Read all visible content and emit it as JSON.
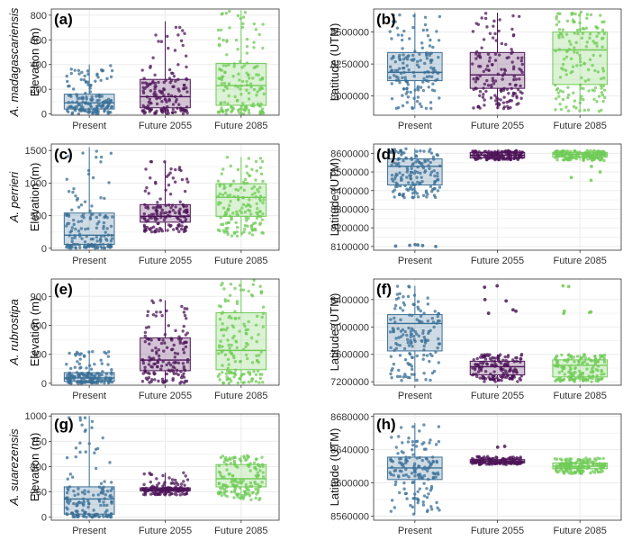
{
  "colors": {
    "Present": "#3a6f96",
    "Future 2055": "#4e1458",
    "Future 2085": "#6fcb55"
  },
  "chart_data": [
    {
      "type": "box",
      "label": "(a)",
      "species": "A. madagascariensis",
      "ylabel": "Elevation (m)",
      "categories": [
        "Present",
        "Future 2055",
        "Future 2085"
      ],
      "ylim": [
        -10,
        850
      ],
      "yticks": [
        0,
        200,
        400,
        600,
        800
      ],
      "yticklabels": [
        "0",
        "200",
        "400",
        "600",
        "800"
      ],
      "grid": true,
      "series": [
        {
          "category": "Present",
          "q1": 40,
          "median": 90,
          "q3": 160,
          "whisker_low": 0,
          "whisker_high": 400,
          "points_range": [
            0,
            400
          ]
        },
        {
          "category": "Future 2055",
          "q1": 50,
          "median": 140,
          "q3": 280,
          "whisker_low": 0,
          "whisker_high": 750,
          "points_range": [
            0,
            750
          ]
        },
        {
          "category": "Future 2085",
          "q1": 70,
          "median": 230,
          "q3": 410,
          "whisker_low": 0,
          "whisker_high": 840,
          "points_range": [
            0,
            840
          ]
        }
      ]
    },
    {
      "type": "box",
      "label": "(b)",
      "species": "",
      "ylabel": "Latitude (UTM)",
      "categories": [
        "Present",
        "Future 2055",
        "Future 2085"
      ],
      "ylim": [
        7850000,
        8680000
      ],
      "yticks": [
        8000000,
        8250000,
        8500000
      ],
      "yticklabels": [
        "8000000",
        "8250000",
        "8500000"
      ],
      "grid": true,
      "series": [
        {
          "category": "Present",
          "q1": 8120000,
          "median": 8185000,
          "q3": 8340000,
          "whisker_low": 7900000,
          "whisker_high": 8650000,
          "points_range": [
            7900000,
            8650000
          ]
        },
        {
          "category": "Future 2055",
          "q1": 8060000,
          "median": 8165000,
          "q3": 8340000,
          "whisker_low": 7900000,
          "whisker_high": 8650000,
          "points_range": [
            7900000,
            8650000
          ]
        },
        {
          "category": "Future 2085",
          "q1": 8090000,
          "median": 8360000,
          "q3": 8500000,
          "whisker_low": 7880000,
          "whisker_high": 8660000,
          "points_range": [
            7880000,
            8660000
          ]
        }
      ]
    },
    {
      "type": "box",
      "label": "(c)",
      "species": "A. perrieri",
      "ylabel": "Elevation (m)",
      "categories": [
        "Present",
        "Future 2055",
        "Future 2085"
      ],
      "ylim": [
        -30,
        1600
      ],
      "yticks": [
        0,
        500,
        1000,
        1500
      ],
      "yticklabels": [
        "0",
        "500",
        "1000",
        "1500"
      ],
      "grid": true,
      "series": [
        {
          "category": "Present",
          "q1": 60,
          "median": 200,
          "q3": 540,
          "whisker_low": 0,
          "whisker_high": 1550,
          "points_range": [
            0,
            1550
          ]
        },
        {
          "category": "Future 2055",
          "q1": 400,
          "median": 490,
          "q3": 670,
          "whisker_low": 250,
          "whisker_high": 1330,
          "points_range": [
            250,
            1330
          ]
        },
        {
          "category": "Future 2085",
          "q1": 490,
          "median": 780,
          "q3": 990,
          "whisker_low": 180,
          "whisker_high": 1400,
          "points_range": [
            180,
            1400
          ]
        }
      ]
    },
    {
      "type": "box",
      "label": "(d)",
      "species": "",
      "ylabel": "Latitude (UTM)",
      "categories": [
        "Present",
        "Future 2055",
        "Future 2085"
      ],
      "ylim": [
        8080000,
        8650000
      ],
      "yticks": [
        8100000,
        8200000,
        8300000,
        8400000,
        8500000,
        8600000
      ],
      "yticklabels": [
        "8100000",
        "8200000",
        "8300000",
        "8400000",
        "8500000",
        "8600000"
      ],
      "grid": true,
      "series": [
        {
          "category": "Present",
          "q1": 8430000,
          "median": 8530000,
          "q3": 8570000,
          "whisker_low": 8360000,
          "whisker_high": 8625000,
          "points_range": [
            8360000,
            8625000
          ],
          "outliers": [
            8105000,
            8110000,
            8100000,
            8108000,
            8102000,
            8106000
          ]
        },
        {
          "category": "Future 2055",
          "q1": 8575000,
          "median": 8590000,
          "q3": 8605000,
          "whisker_low": 8565000,
          "whisker_high": 8615000,
          "points_range": [
            8565000,
            8615000
          ]
        },
        {
          "category": "Future 2085",
          "q1": 8580000,
          "median": 8595000,
          "q3": 8605000,
          "whisker_low": 8560000,
          "whisker_high": 8615000,
          "points_range": [
            8560000,
            8615000
          ],
          "outliers": [
            8500000,
            8470000,
            8530000,
            8455000
          ]
        }
      ]
    },
    {
      "type": "box",
      "label": "(e)",
      "species": "A. rubrostipa",
      "ylabel": "Elevation (m)",
      "categories": [
        "Present",
        "Future 2055",
        "Future 2085"
      ],
      "ylim": [
        -20,
        1080
      ],
      "yticks": [
        0,
        300,
        600,
        900
      ],
      "yticklabels": [
        "0",
        "300",
        "600",
        "900"
      ],
      "grid": true,
      "series": [
        {
          "category": "Present",
          "q1": 20,
          "median": 55,
          "q3": 110,
          "whisker_low": 0,
          "whisker_high": 330,
          "points_range": [
            0,
            330
          ]
        },
        {
          "category": "Future 2055",
          "q1": 130,
          "median": 240,
          "q3": 470,
          "whisker_low": 0,
          "whisker_high": 860,
          "points_range": [
            0,
            860
          ]
        },
        {
          "category": "Future 2085",
          "q1": 140,
          "median": 340,
          "q3": 730,
          "whisker_low": 0,
          "whisker_high": 1070,
          "points_range": [
            0,
            1070
          ]
        }
      ]
    },
    {
      "type": "box",
      "label": "(f)",
      "species": "",
      "ylabel": "Latitude (UTM)",
      "categories": [
        "Present",
        "Future 2055",
        "Future 2085"
      ],
      "ylim": [
        7150000,
        8700000
      ],
      "yticks": [
        7200000,
        7600000,
        8000000,
        8400000
      ],
      "yticklabels": [
        "7200000",
        "7600000",
        "8000000",
        "8400000"
      ],
      "grid": true,
      "series": [
        {
          "category": "Present",
          "q1": 7650000,
          "median": 8050000,
          "q3": 8180000,
          "whisker_low": 7200000,
          "whisker_high": 8600000,
          "points_range": [
            7200000,
            8600000
          ]
        },
        {
          "category": "Future 2055",
          "q1": 7300000,
          "median": 7420000,
          "q3": 7500000,
          "whisker_low": 7200000,
          "whisker_high": 7600000,
          "points_range": [
            7200000,
            7600000
          ],
          "outliers": [
            8600000,
            8580000,
            8400000,
            8380000,
            8250000,
            8230000,
            8200000
          ]
        },
        {
          "category": "Future 2085",
          "q1": 7270000,
          "median": 7440000,
          "q3": 7520000,
          "whisker_low": 7200000,
          "whisker_high": 7600000,
          "points_range": [
            7200000,
            7600000
          ],
          "outliers": [
            8600000,
            8590000,
            8220000,
            8200000,
            8230000,
            8210000
          ]
        }
      ]
    },
    {
      "type": "box",
      "label": "(g)",
      "species": "A. suarezensis",
      "ylabel": "Elevation (m)",
      "categories": [
        "Present",
        "Future 2055",
        "Future 2085"
      ],
      "ylim": [
        -30,
        1020
      ],
      "yticks": [
        0,
        250,
        500,
        750,
        1000
      ],
      "yticklabels": [
        "0",
        "250",
        "500",
        "750",
        "1000"
      ],
      "grid": true,
      "series": [
        {
          "category": "Present",
          "q1": 30,
          "median": 180,
          "q3": 300,
          "whisker_low": 0,
          "whisker_high": 1000,
          "points_range": [
            0,
            1000
          ]
        },
        {
          "category": "Future 2055",
          "q1": 260,
          "median": 275,
          "q3": 290,
          "whisker_low": 220,
          "whisker_high": 440,
          "points_range": [
            220,
            440
          ]
        },
        {
          "category": "Future 2085",
          "q1": 300,
          "median": 380,
          "q3": 520,
          "whisker_low": 170,
          "whisker_high": 610,
          "points_range": [
            170,
            610
          ]
        }
      ]
    },
    {
      "type": "box",
      "label": "(h)",
      "species": "",
      "ylabel": "Latitude (UTM)",
      "categories": [
        "Present",
        "Future 2055",
        "Future 2085"
      ],
      "ylim": [
        8555000,
        8683000
      ],
      "yticks": [
        8560000,
        8600000,
        8640000,
        8680000
      ],
      "yticklabels": [
        "8560000",
        "8600000",
        "8640000",
        "8680000"
      ],
      "grid": true,
      "series": [
        {
          "category": "Present",
          "q1": 8604000,
          "median": 8618000,
          "q3": 8631000,
          "whisker_low": 8562000,
          "whisker_high": 8672000,
          "points_range": [
            8562000,
            8672000
          ]
        },
        {
          "category": "Future 2055",
          "q1": 8624000,
          "median": 8626000,
          "q3": 8628000,
          "whisker_low": 8622000,
          "whisker_high": 8632000,
          "points_range": [
            8622000,
            8632000
          ],
          "outliers": [
            8644000,
            8643000
          ]
        },
        {
          "category": "Future 2085",
          "q1": 8617000,
          "median": 8620000,
          "q3": 8624000,
          "whisker_low": 8611000,
          "whisker_high": 8630000,
          "points_range": [
            8611000,
            8630000
          ]
        }
      ]
    }
  ]
}
